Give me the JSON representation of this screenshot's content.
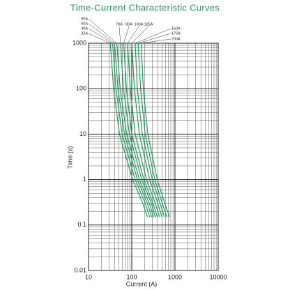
{
  "chart_data": {
    "type": "line",
    "title": "Time-Current Characteristic Curves",
    "x_label": "Current (A)",
    "y_label": "Time (s)",
    "xlim": [
      10,
      10000
    ],
    "ylim": [
      0.01,
      1000
    ],
    "xticks": [
      10,
      100,
      1000,
      10000
    ],
    "yticks": [
      0.01,
      0.1,
      1,
      10,
      100,
      1000
    ],
    "log_x": true,
    "log_y": true,
    "grid": true,
    "color": "#1f9a5c",
    "series": [
      {
        "name": "32A",
        "x": [
          32,
          38,
          52,
          105,
          180,
          230
        ],
        "values": [
          1000,
          100,
          10,
          1,
          0.3,
          0.15
        ]
      },
      {
        "name": "40A",
        "x": [
          36,
          43,
          60,
          120,
          205,
          260
        ],
        "values": [
          1000,
          100,
          10,
          1,
          0.3,
          0.15
        ]
      },
      {
        "name": "50A",
        "x": [
          40,
          48,
          68,
          135,
          230,
          290
        ],
        "values": [
          1000,
          100,
          10,
          1,
          0.3,
          0.15
        ]
      },
      {
        "name": "60A",
        "x": [
          45,
          54,
          76,
          150,
          255,
          320
        ],
        "values": [
          1000,
          100,
          10,
          1,
          0.3,
          0.15
        ]
      },
      {
        "name": "70A",
        "x": [
          55,
          64,
          88,
          170,
          285,
          350
        ],
        "values": [
          1000,
          100,
          10,
          1,
          0.3,
          0.15
        ]
      },
      {
        "name": "80A",
        "x": [
          65,
          75,
          100,
          190,
          310,
          390
        ],
        "values": [
          1000,
          100,
          10,
          1,
          0.3,
          0.15
        ]
      },
      {
        "name": "100A",
        "x": [
          80,
          92,
          120,
          220,
          350,
          440
        ],
        "values": [
          1000,
          100,
          10,
          1,
          0.3,
          0.15
        ]
      },
      {
        "name": "125A",
        "x": [
          100,
          115,
          150,
          260,
          400,
          500
        ],
        "values": [
          1000,
          100,
          10,
          1,
          0.3,
          0.15
        ]
      },
      {
        "name": "150A",
        "x": [
          120,
          135,
          175,
          300,
          450,
          570
        ],
        "values": [
          1000,
          100,
          10,
          1,
          0.3,
          0.15
        ]
      },
      {
        "name": "175A",
        "x": [
          140,
          160,
          205,
          340,
          510,
          650
        ],
        "values": [
          1000,
          100,
          10,
          1,
          0.3,
          0.15
        ]
      },
      {
        "name": "200A",
        "x": [
          165,
          185,
          235,
          390,
          580,
          760
        ],
        "values": [
          1000,
          100,
          10,
          1,
          0.3,
          0.15
        ]
      }
    ]
  }
}
